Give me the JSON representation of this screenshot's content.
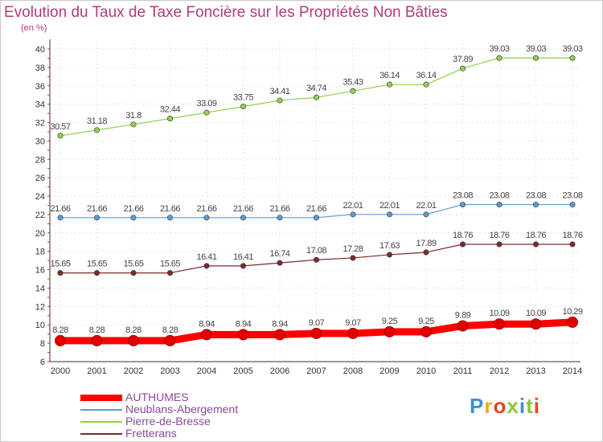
{
  "title": "Evolution du Taux de Taxe Foncière sur les Propriétés Non Bâties",
  "unit_label": "(en %)",
  "logo": {
    "text": "Proxiti",
    "colors": [
      "#3f8fd2",
      "#f0a81c",
      "#e6471e",
      "#8dc63f",
      "#3f8fd2",
      "#8dc63f",
      "#e6471e"
    ]
  },
  "chart_data": {
    "type": "line",
    "title": "Evolution du Taux de Taxe Foncière sur les Propriétés Non Bâties",
    "ylabel": "(en %)",
    "xlabel": "",
    "x": [
      "2000",
      "2001",
      "2002",
      "2003",
      "2004",
      "2005",
      "2006",
      "2007",
      "2008",
      "2009",
      "2010",
      "2011",
      "2012",
      "2013",
      "2014"
    ],
    "ylim": [
      6,
      40
    ],
    "yticks": [
      6,
      8,
      10,
      12,
      14,
      16,
      18,
      20,
      22,
      24,
      26,
      28,
      30,
      32,
      34,
      36,
      38,
      40
    ],
    "grid": true,
    "legend_position": "bottom-left",
    "series": [
      {
        "name": "AUTHUMES",
        "color": "#ff0000",
        "emphasis": true,
        "values": [
          8.28,
          8.28,
          8.28,
          8.28,
          8.94,
          8.94,
          8.94,
          9.07,
          9.07,
          9.25,
          9.25,
          9.89,
          10.09,
          10.09,
          10.29
        ],
        "labels": [
          "8.28",
          "8.28",
          "8.28",
          "8.28",
          "8.94",
          "8.94",
          "8.94",
          "9.07",
          "9.07",
          "9.25",
          "9.25",
          "9.89",
          "10.09",
          "10.09",
          "10.29"
        ]
      },
      {
        "name": "Neublans-Abergement",
        "color": "#5b9bd5",
        "values": [
          21.66,
          21.66,
          21.66,
          21.66,
          21.66,
          21.66,
          21.66,
          21.66,
          22.01,
          22.01,
          22.01,
          23.08,
          23.08,
          23.08,
          23.08
        ],
        "labels": [
          "21.66",
          "21.66",
          "21.66",
          "21.66",
          "21.66",
          "21.66",
          "21.66",
          "21.66",
          "22.01",
          "22.01",
          "22.01",
          "23.08",
          "23.08",
          "23.08",
          "23.08"
        ]
      },
      {
        "name": "Pierre-de-Bresse",
        "color": "#92d050",
        "values": [
          30.57,
          31.18,
          31.8,
          32.44,
          33.09,
          33.75,
          34.41,
          34.74,
          35.43,
          36.14,
          36.14,
          37.89,
          39.03,
          39.03,
          39.03
        ],
        "labels": [
          "30.57",
          "31.18",
          "31.8",
          "32.44",
          "33.09",
          "33.75",
          "34.41",
          "34.74",
          "35.43",
          "36.14",
          "36.14",
          "37.89",
          "39.03",
          "39.03",
          "39.03"
        ]
      },
      {
        "name": "Fretterans",
        "color": "#7b2c2c",
        "values": [
          15.65,
          15.65,
          15.65,
          15.65,
          16.41,
          16.41,
          16.74,
          17.08,
          17.28,
          17.63,
          17.89,
          18.76,
          18.76,
          18.76,
          18.76
        ],
        "labels": [
          "15.65",
          "15.65",
          "15.65",
          "15.65",
          "16.41",
          "16.41",
          "16.74",
          "17.08",
          "17.28",
          "17.63",
          "17.89",
          "18.76",
          "18.76",
          "18.76",
          "18.76"
        ]
      }
    ]
  }
}
